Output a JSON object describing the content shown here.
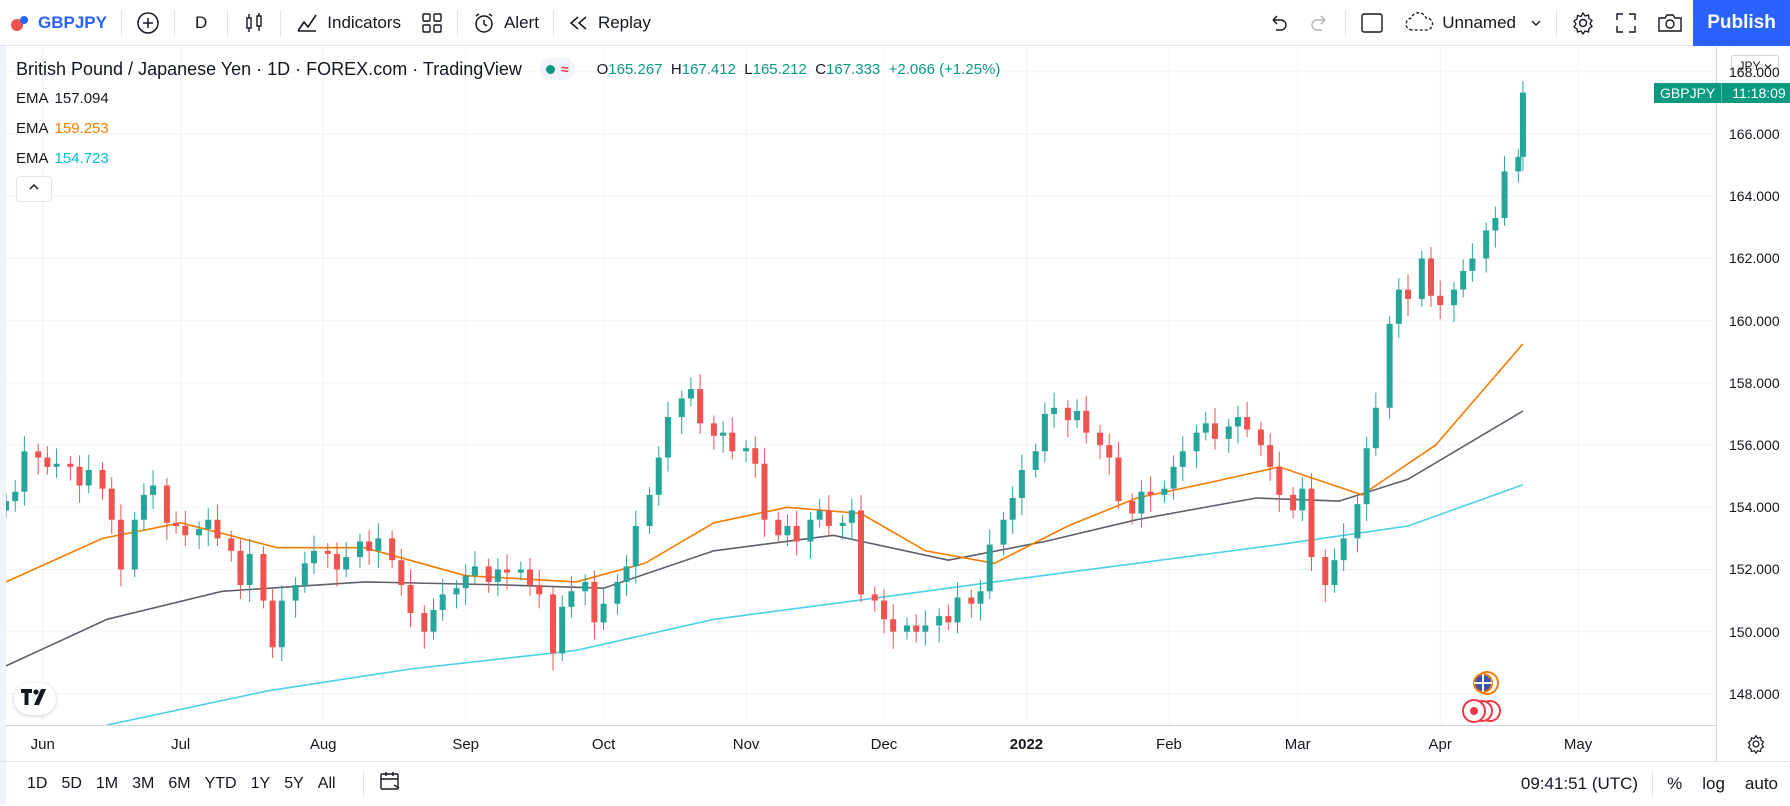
{
  "toolbar": {
    "symbol": "GBPJPY",
    "interval": "D",
    "indicators_label": "Indicators",
    "alert_label": "Alert",
    "replay_label": "Replay",
    "layout_name": "Unnamed",
    "publish_label": "Publish"
  },
  "legend": {
    "title": "British Pound / Japanese Yen · 1D · FOREX.com · TradingView",
    "open_label": "O",
    "open": "165.267",
    "high_label": "H",
    "high": "167.412",
    "low_label": "L",
    "low": "165.212",
    "close_label": "C",
    "close": "167.333",
    "change": "+2.066 (+1.25%)",
    "ema": [
      {
        "label": "EMA",
        "value": "157.094",
        "color": "#131722"
      },
      {
        "label": "EMA",
        "value": "159.253",
        "color": "#f57c00"
      },
      {
        "label": "EMA",
        "value": "154.723",
        "color": "#00bcd4"
      }
    ]
  },
  "price_axis": {
    "currency": "JPY",
    "labels": [
      "168.000",
      "166.000",
      "164.000",
      "162.000",
      "160.000",
      "158.000",
      "156.000",
      "154.000",
      "152.000",
      "150.000",
      "148.000"
    ],
    "tag_symbol": "GBPJPY",
    "tag_time": "11:18:09"
  },
  "time_axis": {
    "labels": [
      "Jun",
      "Jul",
      "Aug",
      "Sep",
      "Oct",
      "Nov",
      "Dec",
      "2022",
      "Feb",
      "Mar",
      "Apr",
      "May"
    ]
  },
  "bottom": {
    "ranges": [
      "1D",
      "5D",
      "1M",
      "3M",
      "6M",
      "YTD",
      "1Y",
      "5Y",
      "All"
    ],
    "clock": "09:41:51 (UTC)",
    "percent_label": "%",
    "log_label": "log",
    "auto_label": "auto"
  },
  "colors": {
    "up": "#26a69a",
    "down": "#ef5350",
    "ema_fast": "#f57c00",
    "ema_mid": "#5d606b",
    "ema_slow": "#4dd0e1",
    "accent": "#2962ff"
  },
  "chart_data": {
    "type": "candlestick",
    "ylim": [
      147.0,
      168.8
    ],
    "x_range": [
      "2021-05-24",
      "2022-05-31"
    ],
    "x_ticks": [
      {
        "label": "Jun",
        "date": "2021-06-01"
      },
      {
        "label": "Jul",
        "date": "2021-07-01"
      },
      {
        "label": "Aug",
        "date": "2021-08-01"
      },
      {
        "label": "Sep",
        "date": "2021-09-01"
      },
      {
        "label": "Oct",
        "date": "2021-10-01"
      },
      {
        "label": "Nov",
        "date": "2021-11-01"
      },
      {
        "label": "Dec",
        "date": "2021-12-01"
      },
      {
        "label": "2022",
        "date": "2022-01-01"
      },
      {
        "label": "Feb",
        "date": "2022-02-01"
      },
      {
        "label": "Mar",
        "date": "2022-03-01"
      },
      {
        "label": "Apr",
        "date": "2022-04-01"
      },
      {
        "label": "May",
        "date": "2022-05-01"
      }
    ],
    "closes": [
      {
        "date": "2021-05-24",
        "value": 154.2
      },
      {
        "date": "2021-05-26",
        "value": 154.5
      },
      {
        "date": "2021-05-28",
        "value": 155.8
      },
      {
        "date": "2021-05-31",
        "value": 155.6
      },
      {
        "date": "2021-06-02",
        "value": 155.3
      },
      {
        "date": "2021-06-04",
        "value": 155.4
      },
      {
        "date": "2021-06-07",
        "value": 155.3
      },
      {
        "date": "2021-06-09",
        "value": 154.7
      },
      {
        "date": "2021-06-11",
        "value": 155.2
      },
      {
        "date": "2021-06-14",
        "value": 154.6
      },
      {
        "date": "2021-06-16",
        "value": 153.6
      },
      {
        "date": "2021-06-18",
        "value": 152.0
      },
      {
        "date": "2021-06-21",
        "value": 153.6
      },
      {
        "date": "2021-06-23",
        "value": 154.4
      },
      {
        "date": "2021-06-25",
        "value": 154.7
      },
      {
        "date": "2021-06-28",
        "value": 153.5
      },
      {
        "date": "2021-06-30",
        "value": 153.4
      },
      {
        "date": "2021-07-02",
        "value": 153.1
      },
      {
        "date": "2021-07-05",
        "value": 153.3
      },
      {
        "date": "2021-07-07",
        "value": 153.6
      },
      {
        "date": "2021-07-09",
        "value": 153.0
      },
      {
        "date": "2021-07-12",
        "value": 152.6
      },
      {
        "date": "2021-07-14",
        "value": 151.5
      },
      {
        "date": "2021-07-16",
        "value": 152.5
      },
      {
        "date": "2021-07-19",
        "value": 151.0
      },
      {
        "date": "2021-07-21",
        "value": 149.5
      },
      {
        "date": "2021-07-23",
        "value": 151.0
      },
      {
        "date": "2021-07-26",
        "value": 151.5
      },
      {
        "date": "2021-07-28",
        "value": 152.2
      },
      {
        "date": "2021-07-30",
        "value": 152.6
      },
      {
        "date": "2021-08-02",
        "value": 152.5
      },
      {
        "date": "2021-08-04",
        "value": 152.0
      },
      {
        "date": "2021-08-06",
        "value": 152.4
      },
      {
        "date": "2021-08-09",
        "value": 152.9
      },
      {
        "date": "2021-08-11",
        "value": 152.6
      },
      {
        "date": "2021-08-13",
        "value": 153.0
      },
      {
        "date": "2021-08-16",
        "value": 152.3
      },
      {
        "date": "2021-08-18",
        "value": 151.5
      },
      {
        "date": "2021-08-20",
        "value": 150.6
      },
      {
        "date": "2021-08-23",
        "value": 150.0
      },
      {
        "date": "2021-08-25",
        "value": 150.7
      },
      {
        "date": "2021-08-27",
        "value": 151.2
      },
      {
        "date": "2021-08-30",
        "value": 151.4
      },
      {
        "date": "2021-09-01",
        "value": 151.8
      },
      {
        "date": "2021-09-03",
        "value": 152.1
      },
      {
        "date": "2021-09-06",
        "value": 151.6
      },
      {
        "date": "2021-09-08",
        "value": 152.0
      },
      {
        "date": "2021-09-10",
        "value": 151.9
      },
      {
        "date": "2021-09-13",
        "value": 152.0
      },
      {
        "date": "2021-09-15",
        "value": 151.5
      },
      {
        "date": "2021-09-17",
        "value": 151.2
      },
      {
        "date": "2021-09-20",
        "value": 149.3
      },
      {
        "date": "2021-09-22",
        "value": 150.8
      },
      {
        "date": "2021-09-24",
        "value": 151.3
      },
      {
        "date": "2021-09-27",
        "value": 151.6
      },
      {
        "date": "2021-09-29",
        "value": 150.3
      },
      {
        "date": "2021-10-01",
        "value": 150.9
      },
      {
        "date": "2021-10-04",
        "value": 151.6
      },
      {
        "date": "2021-10-06",
        "value": 152.1
      },
      {
        "date": "2021-10-08",
        "value": 153.4
      },
      {
        "date": "2021-10-11",
        "value": 154.4
      },
      {
        "date": "2021-10-13",
        "value": 155.6
      },
      {
        "date": "2021-10-15",
        "value": 156.9
      },
      {
        "date": "2021-10-18",
        "value": 157.5
      },
      {
        "date": "2021-10-20",
        "value": 157.8
      },
      {
        "date": "2021-10-22",
        "value": 156.7
      },
      {
        "date": "2021-10-25",
        "value": 156.3
      },
      {
        "date": "2021-10-27",
        "value": 156.4
      },
      {
        "date": "2021-10-29",
        "value": 155.8
      },
      {
        "date": "2021-11-01",
        "value": 155.9
      },
      {
        "date": "2021-11-03",
        "value": 155.4
      },
      {
        "date": "2021-11-05",
        "value": 153.6
      },
      {
        "date": "2021-11-08",
        "value": 153.1
      },
      {
        "date": "2021-11-10",
        "value": 153.4
      },
      {
        "date": "2021-11-12",
        "value": 152.9
      },
      {
        "date": "2021-11-15",
        "value": 153.6
      },
      {
        "date": "2021-11-17",
        "value": 153.9
      },
      {
        "date": "2021-11-19",
        "value": 153.4
      },
      {
        "date": "2021-11-22",
        "value": 153.5
      },
      {
        "date": "2021-11-24",
        "value": 153.9
      },
      {
        "date": "2021-11-26",
        "value": 151.2
      },
      {
        "date": "2021-11-29",
        "value": 151.0
      },
      {
        "date": "2021-12-01",
        "value": 150.4
      },
      {
        "date": "2021-12-03",
        "value": 150.0
      },
      {
        "date": "2021-12-06",
        "value": 150.2
      },
      {
        "date": "2021-12-08",
        "value": 150.0
      },
      {
        "date": "2021-12-10",
        "value": 150.2
      },
      {
        "date": "2021-12-13",
        "value": 150.5
      },
      {
        "date": "2021-12-15",
        "value": 150.3
      },
      {
        "date": "2021-12-17",
        "value": 151.1
      },
      {
        "date": "2021-12-20",
        "value": 150.9
      },
      {
        "date": "2021-12-22",
        "value": 151.3
      },
      {
        "date": "2021-12-24",
        "value": 152.8
      },
      {
        "date": "2021-12-27",
        "value": 153.6
      },
      {
        "date": "2021-12-29",
        "value": 154.3
      },
      {
        "date": "2021-12-31",
        "value": 155.2
      },
      {
        "date": "2022-01-03",
        "value": 155.8
      },
      {
        "date": "2022-01-05",
        "value": 157.0
      },
      {
        "date": "2022-01-07",
        "value": 157.2
      },
      {
        "date": "2022-01-10",
        "value": 156.8
      },
      {
        "date": "2022-01-12",
        "value": 157.1
      },
      {
        "date": "2022-01-14",
        "value": 156.4
      },
      {
        "date": "2022-01-17",
        "value": 156.0
      },
      {
        "date": "2022-01-19",
        "value": 155.6
      },
      {
        "date": "2022-01-21",
        "value": 154.2
      },
      {
        "date": "2022-01-24",
        "value": 153.8
      },
      {
        "date": "2022-01-26",
        "value": 154.5
      },
      {
        "date": "2022-01-28",
        "value": 154.4
      },
      {
        "date": "2022-01-31",
        "value": 154.6
      },
      {
        "date": "2022-02-02",
        "value": 155.3
      },
      {
        "date": "2022-02-04",
        "value": 155.8
      },
      {
        "date": "2022-02-07",
        "value": 156.4
      },
      {
        "date": "2022-02-09",
        "value": 156.7
      },
      {
        "date": "2022-02-11",
        "value": 156.2
      },
      {
        "date": "2022-02-14",
        "value": 156.6
      },
      {
        "date": "2022-02-16",
        "value": 156.9
      },
      {
        "date": "2022-02-18",
        "value": 156.5
      },
      {
        "date": "2022-02-21",
        "value": 156.0
      },
      {
        "date": "2022-02-23",
        "value": 155.3
      },
      {
        "date": "2022-02-25",
        "value": 154.4
      },
      {
        "date": "2022-02-28",
        "value": 153.9
      },
      {
        "date": "2022-03-02",
        "value": 154.6
      },
      {
        "date": "2022-03-04",
        "value": 152.4
      },
      {
        "date": "2022-03-07",
        "value": 151.5
      },
      {
        "date": "2022-03-09",
        "value": 152.3
      },
      {
        "date": "2022-03-11",
        "value": 153.0
      },
      {
        "date": "2022-03-14",
        "value": 154.1
      },
      {
        "date": "2022-03-16",
        "value": 155.9
      },
      {
        "date": "2022-03-18",
        "value": 157.2
      },
      {
        "date": "2022-03-21",
        "value": 159.9
      },
      {
        "date": "2022-03-23",
        "value": 161.0
      },
      {
        "date": "2022-03-25",
        "value": 160.7
      },
      {
        "date": "2022-03-28",
        "value": 162.0
      },
      {
        "date": "2022-03-30",
        "value": 160.8
      },
      {
        "date": "2022-04-01",
        "value": 160.5
      },
      {
        "date": "2022-04-04",
        "value": 161.0
      },
      {
        "date": "2022-04-06",
        "value": 161.6
      },
      {
        "date": "2022-04-08",
        "value": 162.0
      },
      {
        "date": "2022-04-11",
        "value": 162.9
      },
      {
        "date": "2022-04-13",
        "value": 163.3
      },
      {
        "date": "2022-04-15",
        "value": 164.8
      },
      {
        "date": "2022-04-18",
        "value": 165.267
      },
      {
        "date": "2022-04-19",
        "value": 167.333
      }
    ],
    "ema_fast": [
      {
        "date": "2021-05-24",
        "value": 151.6
      },
      {
        "date": "2021-06-14",
        "value": 153.0
      },
      {
        "date": "2021-07-01",
        "value": 153.5
      },
      {
        "date": "2021-07-22",
        "value": 152.7
      },
      {
        "date": "2021-08-10",
        "value": 152.7
      },
      {
        "date": "2021-09-01",
        "value": 151.8
      },
      {
        "date": "2021-09-25",
        "value": 151.6
      },
      {
        "date": "2021-10-10",
        "value": 152.2
      },
      {
        "date": "2021-10-25",
        "value": 153.5
      },
      {
        "date": "2021-11-10",
        "value": 154.0
      },
      {
        "date": "2021-11-26",
        "value": 153.8
      },
      {
        "date": "2021-12-10",
        "value": 152.6
      },
      {
        "date": "2021-12-25",
        "value": 152.2
      },
      {
        "date": "2022-01-10",
        "value": 153.4
      },
      {
        "date": "2022-01-25",
        "value": 154.3
      },
      {
        "date": "2022-02-10",
        "value": 154.8
      },
      {
        "date": "2022-02-25",
        "value": 155.3
      },
      {
        "date": "2022-03-15",
        "value": 154.4
      },
      {
        "date": "2022-03-31",
        "value": 156.0
      },
      {
        "date": "2022-04-19",
        "value": 159.253
      }
    ],
    "ema_mid": [
      {
        "date": "2021-05-24",
        "value": 148.9
      },
      {
        "date": "2021-06-15",
        "value": 150.4
      },
      {
        "date": "2021-07-10",
        "value": 151.3
      },
      {
        "date": "2021-08-10",
        "value": 151.6
      },
      {
        "date": "2021-09-10",
        "value": 151.5
      },
      {
        "date": "2021-10-01",
        "value": 151.4
      },
      {
        "date": "2021-10-25",
        "value": 152.6
      },
      {
        "date": "2021-11-20",
        "value": 153.1
      },
      {
        "date": "2021-12-15",
        "value": 152.3
      },
      {
        "date": "2022-01-05",
        "value": 152.9
      },
      {
        "date": "2022-01-25",
        "value": 153.6
      },
      {
        "date": "2022-02-20",
        "value": 154.3
      },
      {
        "date": "2022-03-10",
        "value": 154.2
      },
      {
        "date": "2022-03-25",
        "value": 154.9
      },
      {
        "date": "2022-04-19",
        "value": 157.094
      }
    ],
    "ema_slow": [
      {
        "date": "2021-06-15",
        "value": 147.0
      },
      {
        "date": "2021-07-20",
        "value": 148.1
      },
      {
        "date": "2021-08-20",
        "value": 148.8
      },
      {
        "date": "2021-09-25",
        "value": 149.4
      },
      {
        "date": "2021-10-25",
        "value": 150.4
      },
      {
        "date": "2021-11-25",
        "value": 151.0
      },
      {
        "date": "2021-12-25",
        "value": 151.6
      },
      {
        "date": "2022-01-25",
        "value": 152.2
      },
      {
        "date": "2022-02-25",
        "value": 152.8
      },
      {
        "date": "2022-03-25",
        "value": 153.4
      },
      {
        "date": "2022-04-19",
        "value": 154.723
      }
    ]
  }
}
